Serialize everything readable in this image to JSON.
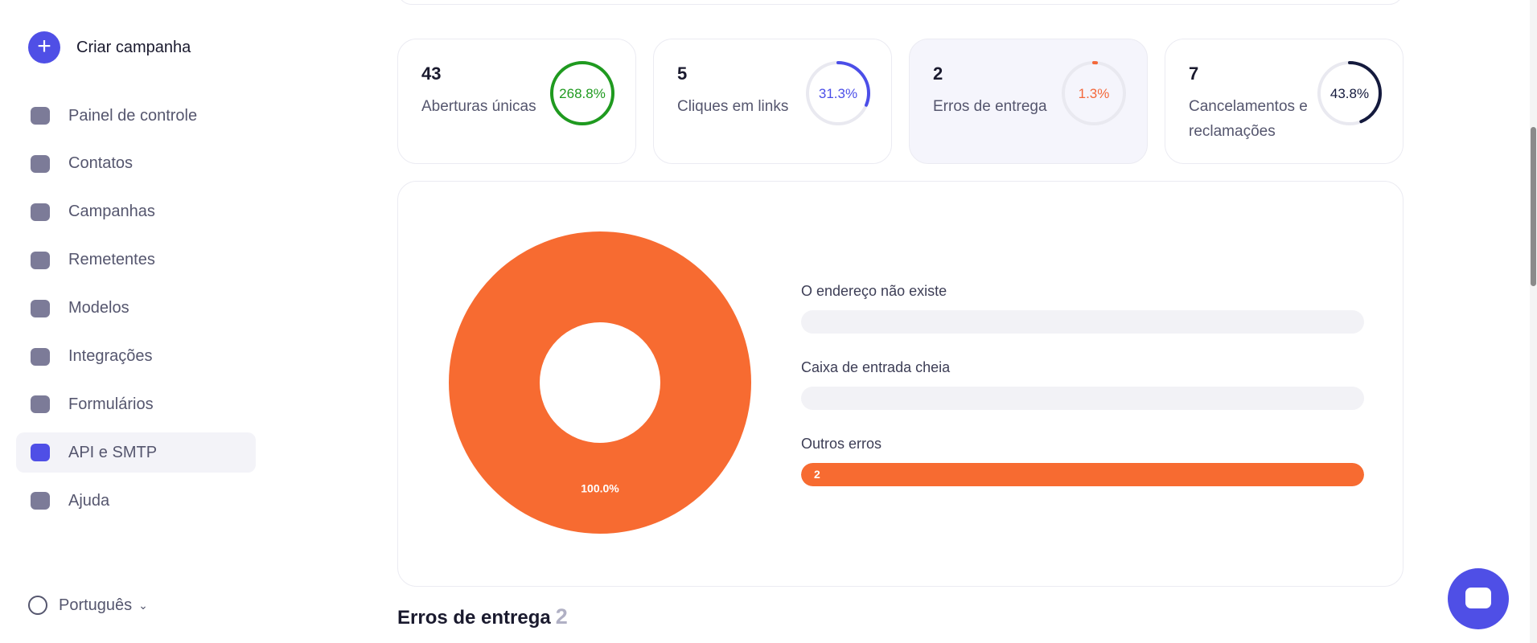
{
  "sidebar": {
    "create_button": "Criar campanha",
    "nav": [
      "Painel de controle",
      "Contatos",
      "Campanhas",
      "Remetentes",
      "Modelos",
      "Integrações",
      "Formulários",
      "API e SMTP",
      "Ajuda"
    ],
    "active_index": 7,
    "language": "Português"
  },
  "stats": [
    {
      "value": 43,
      "label": "Aberturas únicas",
      "percent": 268.8,
      "percent_label": "268.8%",
      "color": "#1f9a1f"
    },
    {
      "value": 5,
      "label": "Cliques em links",
      "percent": 31.3,
      "percent_label": "31.3%",
      "color": "#4b4ee8"
    },
    {
      "value": 2,
      "label": "Erros de entrega",
      "percent": 1.3,
      "percent_label": "1.3%",
      "color": "#f4683a"
    },
    {
      "value": 7,
      "label": "Cancelamentos e reclamações",
      "percent": 43.8,
      "percent_label": "43.8%",
      "color": "#141a3d"
    }
  ],
  "selected_stat": 2,
  "breakdown": {
    "items": [
      {
        "label": "O endereço não existe",
        "count": 0
      },
      {
        "label": "Caixa de entrada cheia",
        "count": 0
      },
      {
        "label": "Outros erros",
        "count": 2
      }
    ],
    "color": "#f76b31",
    "donut_label": "100.0%"
  },
  "section": {
    "title": "Erros de entrega",
    "count": 2
  }
}
